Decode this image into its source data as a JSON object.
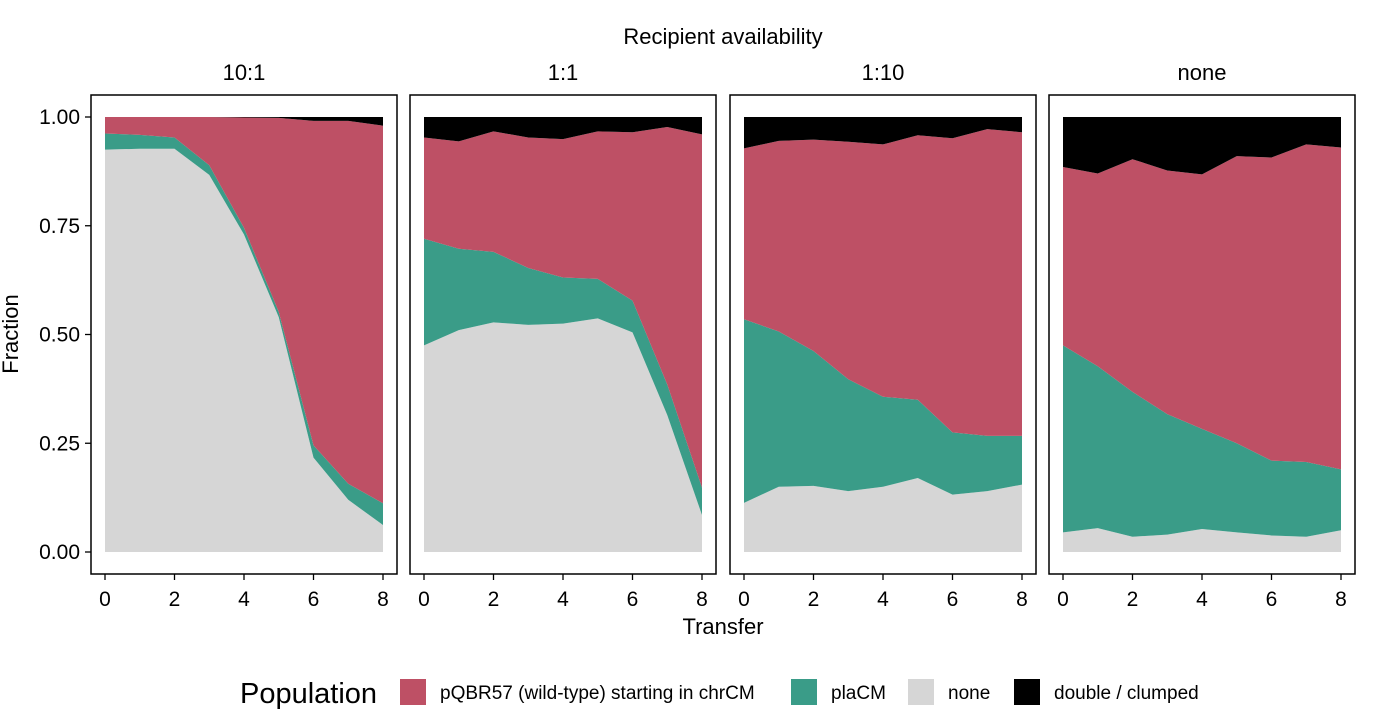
{
  "chart_data": {
    "type": "area",
    "stacked": true,
    "title": "Recipient availability",
    "xlabel": "Transfer",
    "ylabel": "Fraction",
    "xlim": [
      0,
      8
    ],
    "ylim": [
      0,
      1
    ],
    "x_ticks": [
      "0",
      "2",
      "4",
      "6",
      "8"
    ],
    "y_ticks": [
      "0.00",
      "0.25",
      "0.50",
      "0.75",
      "1.00"
    ],
    "legend": {
      "title": "Population",
      "position": "bottom",
      "entries": [
        {
          "name": "pQBR57 (wild-type) starting in chrCM",
          "color": "#BE5065"
        },
        {
          "name": "plaCM",
          "color": "#3A9C88"
        },
        {
          "name": "none",
          "color": "#D6D6D6"
        },
        {
          "name": "double / clumped",
          "color": "#000000"
        }
      ]
    },
    "stack_order_bottom_to_top": [
      "none",
      "plaCM",
      "pQBR57 (wild-type) starting in chrCM",
      "double / clumped"
    ],
    "x": [
      0,
      1,
      2,
      3,
      4,
      5,
      6,
      7,
      8
    ],
    "panels": [
      {
        "label": "10:1",
        "series": [
          {
            "name": "none",
            "values": [
              0.925,
              0.927,
              0.927,
              0.867,
              0.73,
              0.54,
              0.217,
              0.12,
              0.062
            ]
          },
          {
            "name": "plaCM",
            "values": [
              0.037,
              0.032,
              0.026,
              0.022,
              0.015,
              0.012,
              0.028,
              0.037,
              0.05
            ]
          },
          {
            "name": "pQBR57 (wild-type) starting in chrCM",
            "values": [
              0.038,
              0.041,
              0.047,
              0.111,
              0.254,
              0.446,
              0.746,
              0.834,
              0.868
            ]
          },
          {
            "name": "double / clumped",
            "values": [
              0.0,
              0.0,
              0.0,
              0.0,
              0.001,
              0.002,
              0.009,
              0.009,
              0.02
            ]
          }
        ]
      },
      {
        "label": "1:1",
        "series": [
          {
            "name": "none",
            "values": [
              0.475,
              0.51,
              0.528,
              0.522,
              0.525,
              0.537,
              0.505,
              0.315,
              0.085
            ]
          },
          {
            "name": "plaCM",
            "values": [
              0.245,
              0.187,
              0.162,
              0.131,
              0.106,
              0.091,
              0.073,
              0.07,
              0.063
            ]
          },
          {
            "name": "pQBR57 (wild-type) starting in chrCM",
            "values": [
              0.233,
              0.247,
              0.277,
              0.3,
              0.318,
              0.339,
              0.387,
              0.592,
              0.812
            ]
          },
          {
            "name": "double / clumped",
            "values": [
              0.047,
              0.056,
              0.033,
              0.047,
              0.051,
              0.033,
              0.035,
              0.023,
              0.04
            ]
          }
        ]
      },
      {
        "label": "1:10",
        "series": [
          {
            "name": "none",
            "values": [
              0.113,
              0.15,
              0.152,
              0.14,
              0.15,
              0.17,
              0.132,
              0.14,
              0.155
            ]
          },
          {
            "name": "plaCM",
            "values": [
              0.422,
              0.357,
              0.31,
              0.257,
              0.207,
              0.18,
              0.143,
              0.127,
              0.112
            ]
          },
          {
            "name": "pQBR57 (wild-type) starting in chrCM",
            "values": [
              0.393,
              0.438,
              0.486,
              0.546,
              0.58,
              0.608,
              0.676,
              0.705,
              0.698
            ]
          },
          {
            "name": "double / clumped",
            "values": [
              0.072,
              0.055,
              0.052,
              0.057,
              0.063,
              0.042,
              0.049,
              0.028,
              0.035
            ]
          }
        ]
      },
      {
        "label": "none",
        "series": [
          {
            "name": "none",
            "values": [
              0.045,
              0.055,
              0.035,
              0.04,
              0.053,
              0.045,
              0.038,
              0.035,
              0.05
            ]
          },
          {
            "name": "plaCM",
            "values": [
              0.43,
              0.372,
              0.333,
              0.277,
              0.23,
              0.205,
              0.172,
              0.172,
              0.14
            ]
          },
          {
            "name": "pQBR57 (wild-type) starting in chrCM",
            "values": [
              0.41,
              0.443,
              0.535,
              0.56,
              0.585,
              0.66,
              0.697,
              0.73,
              0.74
            ]
          },
          {
            "name": "double / clumped",
            "values": [
              0.115,
              0.13,
              0.097,
              0.123,
              0.132,
              0.09,
              0.093,
              0.063,
              0.07
            ]
          }
        ]
      }
    ]
  }
}
